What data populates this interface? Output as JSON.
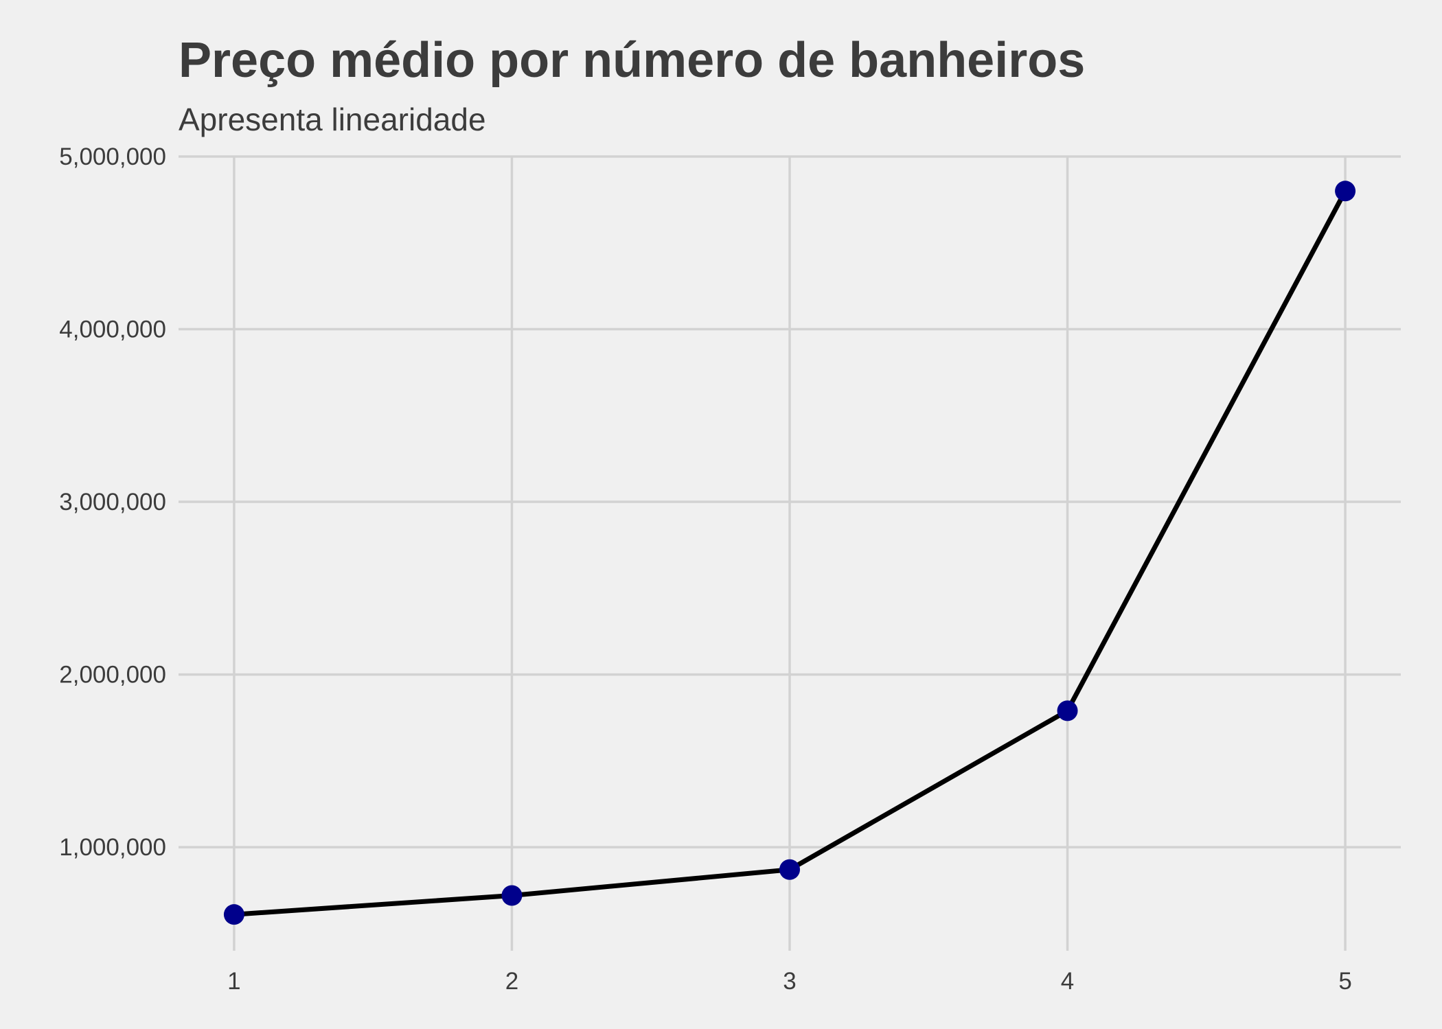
{
  "chart_data": {
    "type": "line",
    "title": "Preço médio por número de banheiros",
    "subtitle": "Apresenta linearidade",
    "xlabel": "",
    "ylabel": "",
    "x": [
      1,
      2,
      3,
      4,
      5
    ],
    "y": [
      610000,
      720000,
      870000,
      1790000,
      4800000
    ],
    "x_ticks": [
      1,
      2,
      3,
      4,
      5
    ],
    "x_tick_labels": [
      "1",
      "2",
      "3",
      "4",
      "5"
    ],
    "y_ticks": [
      1000000,
      2000000,
      3000000,
      4000000,
      5000000
    ],
    "y_tick_labels": [
      "1,000,000",
      "2,000,000",
      "3,000,000",
      "4,000,000",
      "5,000,000"
    ],
    "xlim": [
      0.8,
      5.2
    ],
    "ylim": [
      400000,
      5000000
    ],
    "grid": true,
    "legend": "none",
    "colors": {
      "background": "#f0f0f0",
      "grid": "#d2d2d2",
      "line": "#000000",
      "points": "#00008b",
      "text": "#3c3c3c"
    }
  }
}
